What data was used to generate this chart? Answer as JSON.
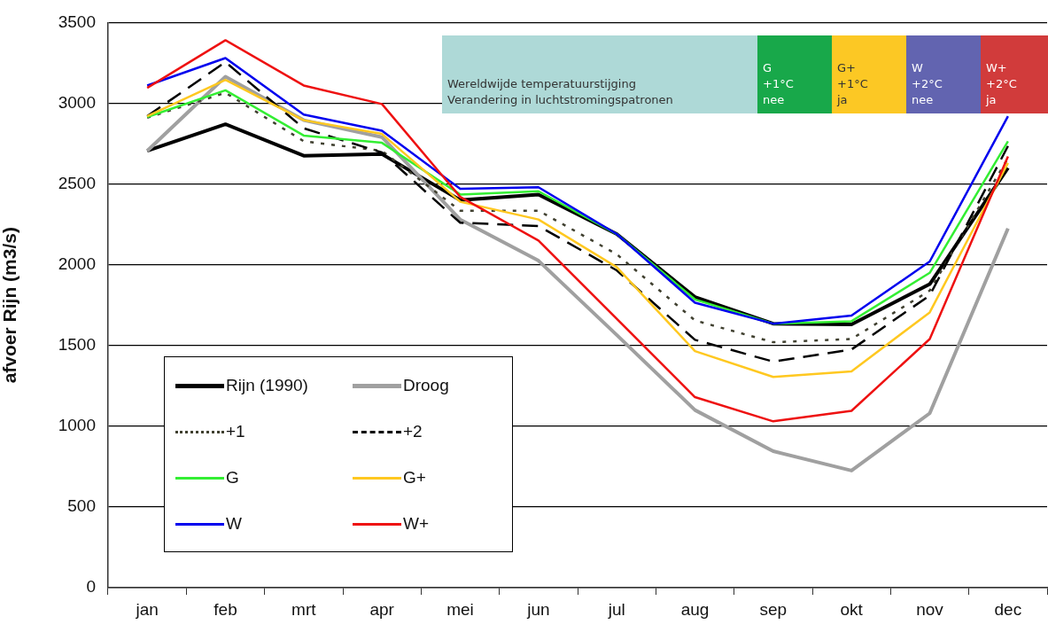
{
  "chart_data": {
    "type": "line",
    "ylabel": "afvoer Rijn (m3/s)",
    "categories": [
      "jan",
      "feb",
      "mrt",
      "apr",
      "mei",
      "jun",
      "jul",
      "aug",
      "sep",
      "okt",
      "nov",
      "dec"
    ],
    "ylim": [
      0,
      3500
    ],
    "yticks": [
      0,
      500,
      1000,
      1500,
      2000,
      2500,
      3000,
      3500
    ],
    "grid": "y",
    "legend": "bottom left",
    "marker": "none",
    "series": [
      {
        "name": "Rijn (1990)",
        "color": "#000000",
        "line_style": "solid",
        "values": [
          2705,
          2870,
          2675,
          2685,
          2400,
          2435,
          2190,
          1800,
          1635,
          1630,
          1880,
          2600
        ]
      },
      {
        "name": "Droog",
        "color": "#a0a0a0",
        "line_style": "solid",
        "values": [
          2705,
          3165,
          2895,
          2790,
          2280,
          2025,
          1565,
          1100,
          845,
          725,
          1080,
          2225
        ]
      },
      {
        "name": "+1",
        "color": "#404030",
        "line_style": "dotted",
        "values": [
          2910,
          3065,
          2765,
          2705,
          2335,
          2335,
          2065,
          1655,
          1520,
          1540,
          1840,
          2660
        ]
      },
      {
        "name": "+2",
        "color": "#000000",
        "line_style": "dashed",
        "values": [
          2920,
          3255,
          2845,
          2695,
          2260,
          2240,
          1965,
          1535,
          1400,
          1475,
          1810,
          2735
        ]
      },
      {
        "name": "G",
        "color": "#33ee33",
        "line_style": "solid",
        "values": [
          2915,
          3080,
          2800,
          2755,
          2435,
          2455,
          2190,
          1785,
          1635,
          1650,
          1950,
          2765
        ]
      },
      {
        "name": "G+",
        "color": "#ffc820",
        "line_style": "solid",
        "values": [
          2920,
          3145,
          2895,
          2810,
          2390,
          2280,
          1985,
          1465,
          1305,
          1340,
          1705,
          2630
        ]
      },
      {
        "name": "W",
        "color": "#0000ee",
        "line_style": "solid",
        "values": [
          3110,
          3280,
          2930,
          2830,
          2470,
          2480,
          2190,
          1765,
          1635,
          1685,
          2020,
          2920
        ]
      },
      {
        "name": "W+",
        "color": "#ee1111",
        "line_style": "solid",
        "values": [
          3095,
          3390,
          3110,
          2995,
          2420,
          2150,
          1665,
          1180,
          1030,
          1095,
          1540,
          2670
        ]
      }
    ],
    "annotations": [
      "Wereldwijde temperatuurstijging\nVerandering in luchtstromingspatronen",
      "G\n+1°C\nnee",
      "G+\n+1°C\nja",
      "W\n+2°C\nnee",
      "W+\n+2°C\nja"
    ]
  }
}
